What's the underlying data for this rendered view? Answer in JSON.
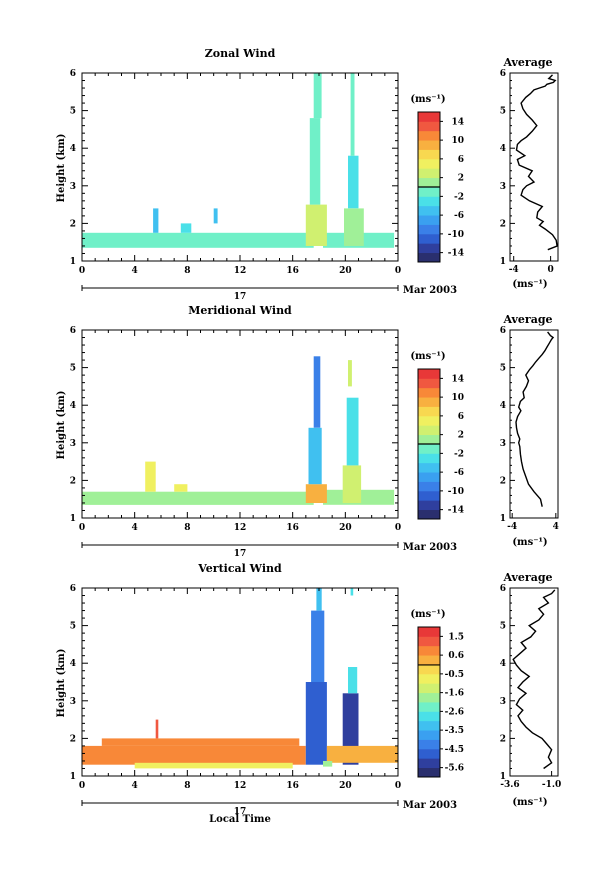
{
  "date_label": "Mar 2003",
  "day_label": "17",
  "xaxis_label": "Local Time",
  "ylabel": "Height (km)",
  "avg_title": "Average",
  "unit_label": "(ms⁻¹)",
  "xticks": [
    "0",
    "4",
    "8",
    "12",
    "16",
    "20",
    "0"
  ],
  "yticks": [
    "1",
    "2",
    "3",
    "4",
    "5",
    "6"
  ],
  "colormap": [
    "#2a2f6e",
    "#2f3f9e",
    "#2f5fd0",
    "#3a80e8",
    "#3aa0f0",
    "#40c0f0",
    "#4ae0e8",
    "#70f0c8",
    "#a0f098",
    "#d0f070",
    "#f0f060",
    "#f8d850",
    "#f8b040",
    "#f88838",
    "#f05840",
    "#e83838"
  ],
  "chart_data": [
    {
      "type": "heatmap",
      "title": "Zonal Wind",
      "ylabel": "Height (km)",
      "xlim": [
        0,
        24
      ],
      "ylim": [
        1,
        6
      ],
      "colorbar": {
        "label": "(ms⁻¹)",
        "ticks": [
          "14",
          "10",
          "6",
          "2",
          "-2",
          "-6",
          "-10",
          "-14"
        ],
        "range": [
          -16,
          16
        ]
      },
      "avg": {
        "xlim": [
          -4.4,
          0.8
        ],
        "xticks": [
          "-4",
          "0"
        ],
        "xlabel": "(ms⁻¹)",
        "x": [
          -0.3,
          0.7,
          0.6,
          0.2,
          -0.6,
          -1.2,
          -0.8,
          -1.5,
          -1.4,
          -0.9,
          -2.3,
          -3.2,
          -3.0,
          -2.6,
          -1.8,
          -2.4,
          -2.0,
          -3.4,
          -3.6,
          -2.8,
          -3.7,
          -3.6,
          -3.2,
          -2.6,
          -2.0,
          -1.5,
          -2.0,
          -2.6,
          -3.0,
          -3.2,
          -2.7,
          -2.2,
          -1.8,
          -1.2,
          -0.6,
          -0.4,
          0.3,
          0.5,
          -0.2,
          0.2
        ],
        "y": [
          1.3,
          1.4,
          1.55,
          1.7,
          1.85,
          1.95,
          2.05,
          2.15,
          2.3,
          2.45,
          2.6,
          2.75,
          2.9,
          3.0,
          3.1,
          3.25,
          3.4,
          3.55,
          3.7,
          3.8,
          3.95,
          4.1,
          4.2,
          4.3,
          4.45,
          4.6,
          4.75,
          4.9,
          5.05,
          5.2,
          5.35,
          5.45,
          5.55,
          5.6,
          5.65,
          5.7,
          5.75,
          5.8,
          5.85,
          5.95
        ]
      },
      "blocks": [
        {
          "x": [
            0,
            17.6
          ],
          "y": [
            1.35,
            1.75
          ],
          "v": -1
        },
        {
          "x": [
            18.3,
            23.7
          ],
          "y": [
            1.35,
            1.75
          ],
          "v": -1
        },
        {
          "x": [
            17.0,
            18.6
          ],
          "y": [
            1.4,
            2.5
          ],
          "v": 3
        },
        {
          "x": [
            17.3,
            18.1
          ],
          "y": [
            2.5,
            4.8
          ],
          "v": -2
        },
        {
          "x": [
            17.6,
            18.2
          ],
          "y": [
            4.8,
            6.4
          ],
          "v": -1
        },
        {
          "x": [
            19.9,
            21.4
          ],
          "y": [
            1.4,
            2.4
          ],
          "v": 1
        },
        {
          "x": [
            20.2,
            21.0
          ],
          "y": [
            2.4,
            3.8
          ],
          "v": -3
        },
        {
          "x": [
            20.4,
            20.7
          ],
          "y": [
            3.8,
            6.4
          ],
          "v": -1
        },
        {
          "x": [
            5.4,
            5.8
          ],
          "y": [
            1.75,
            2.4
          ],
          "v": -5
        },
        {
          "x": [
            7.5,
            8.3
          ],
          "y": [
            1.75,
            2.0
          ],
          "v": -3
        },
        {
          "x": [
            10.0,
            10.3
          ],
          "y": [
            2.0,
            2.4
          ],
          "v": -5
        }
      ]
    },
    {
      "type": "heatmap",
      "title": "Meridional Wind",
      "ylabel": "Height (km)",
      "xlim": [
        0,
        24
      ],
      "ylim": [
        1,
        6
      ],
      "colorbar": {
        "label": "(ms⁻¹)",
        "ticks": [
          "14",
          "10",
          "6",
          "2",
          "-2",
          "-6",
          "-10",
          "-14"
        ],
        "range": [
          -16,
          16
        ]
      },
      "avg": {
        "xlim": [
          -4.4,
          4.4
        ],
        "xticks": [
          "-4",
          "4"
        ],
        "xlabel": "(ms⁻¹)",
        "x": [
          1.5,
          1.2,
          0.0,
          -1.0,
          -1.5,
          -2.0,
          -2.3,
          -2.5,
          -2.6,
          -2.8,
          -2.6,
          -3.0,
          -3.2,
          -3.3,
          -3.0,
          -2.4,
          -2.8,
          -2.5,
          -1.8,
          -2.0,
          -1.4,
          -1.0,
          -1.5,
          -0.8,
          -0.2,
          0.3,
          0.9,
          1.5,
          2.0,
          2.4,
          2.8,
          3.2,
          3.5,
          3.0,
          2.5
        ],
        "y": [
          1.3,
          1.5,
          1.7,
          1.9,
          2.1,
          2.3,
          2.5,
          2.7,
          2.9,
          3.0,
          3.1,
          3.25,
          3.4,
          3.55,
          3.7,
          3.85,
          3.95,
          4.1,
          4.2,
          4.35,
          4.5,
          4.65,
          4.8,
          4.95,
          5.05,
          5.15,
          5.25,
          5.35,
          5.45,
          5.55,
          5.65,
          5.75,
          5.8,
          5.85,
          5.95
        ]
      },
      "blocks": [
        {
          "x": [
            0,
            17.6
          ],
          "y": [
            1.35,
            1.7
          ],
          "v": 1
        },
        {
          "x": [
            18.3,
            23.7
          ],
          "y": [
            1.35,
            1.75
          ],
          "v": 1
        },
        {
          "x": [
            17.0,
            18.6
          ],
          "y": [
            1.4,
            1.9
          ],
          "v": 8
        },
        {
          "x": [
            17.2,
            18.2
          ],
          "y": [
            1.9,
            3.4
          ],
          "v": -6
        },
        {
          "x": [
            17.6,
            18.1
          ],
          "y": [
            3.4,
            5.3
          ],
          "v": -9
        },
        {
          "x": [
            19.8,
            21.2
          ],
          "y": [
            1.4,
            2.4
          ],
          "v": 2
        },
        {
          "x": [
            20.1,
            21.0
          ],
          "y": [
            2.4,
            4.2
          ],
          "v": -4
        },
        {
          "x": [
            20.2,
            20.5
          ],
          "y": [
            4.5,
            5.2
          ],
          "v": 2
        },
        {
          "x": [
            4.8,
            5.6
          ],
          "y": [
            1.7,
            2.5
          ],
          "v": 4
        },
        {
          "x": [
            7.0,
            8.0
          ],
          "y": [
            1.7,
            1.9
          ],
          "v": 5
        }
      ]
    },
    {
      "type": "heatmap",
      "title": "Vertical Wind",
      "ylabel": "Height (km)",
      "xlim": [
        0,
        24
      ],
      "ylim": [
        1,
        6
      ],
      "colorbar": {
        "label": "(ms⁻¹)",
        "ticks": [
          "1.5",
          "0.6",
          "-0.5",
          "-1.6",
          "-2.6",
          "-3.5",
          "-4.5",
          "-5.6"
        ],
        "range": [
          -6.2,
          2.1
        ]
      },
      "avg": {
        "xlim": [
          -3.6,
          -0.6
        ],
        "xticks": [
          "-3.6",
          "-1.0"
        ],
        "xlabel": "(ms⁻¹)",
        "x": [
          -1.5,
          -1.0,
          -1.2,
          -1.0,
          -1.3,
          -1.6,
          -2.2,
          -2.6,
          -2.9,
          -3.1,
          -2.8,
          -3.2,
          -3.0,
          -2.6,
          -3.1,
          -2.8,
          -2.4,
          -2.9,
          -3.2,
          -3.4,
          -3.0,
          -2.6,
          -2.9,
          -2.3,
          -2.0,
          -2.4,
          -1.8,
          -1.5,
          -1.8,
          -1.2,
          -1.5,
          -1.0,
          -0.8
        ],
        "y": [
          1.2,
          1.35,
          1.5,
          1.7,
          1.85,
          2.0,
          2.15,
          2.3,
          2.45,
          2.6,
          2.75,
          2.9,
          3.05,
          3.2,
          3.35,
          3.5,
          3.65,
          3.8,
          3.95,
          4.1,
          4.25,
          4.4,
          4.55,
          4.7,
          4.85,
          5.0,
          5.15,
          5.3,
          5.45,
          5.6,
          5.75,
          5.85,
          5.95
        ]
      },
      "blocks": [
        {
          "x": [
            0,
            17.0
          ],
          "y": [
            1.3,
            1.8
          ],
          "v": 0.6
        },
        {
          "x": [
            1.5,
            16.5
          ],
          "y": [
            1.8,
            2.0
          ],
          "v": 1.0
        },
        {
          "x": [
            17.0,
            18.6
          ],
          "y": [
            1.3,
            3.5
          ],
          "v": -5.0
        },
        {
          "x": [
            17.4,
            18.4
          ],
          "y": [
            3.5,
            5.4
          ],
          "v": -4.5
        },
        {
          "x": [
            17.8,
            18.2
          ],
          "y": [
            5.4,
            6.1
          ],
          "v": -3.5
        },
        {
          "x": [
            19.8,
            21.0
          ],
          "y": [
            1.3,
            3.2
          ],
          "v": -5.2
        },
        {
          "x": [
            20.2,
            20.9
          ],
          "y": [
            3.2,
            3.9
          ],
          "v": -3.0
        },
        {
          "x": [
            20.4,
            20.6
          ],
          "y": [
            5.8,
            6.0
          ],
          "v": -3.0
        },
        {
          "x": [
            18.6,
            24.0
          ],
          "y": [
            1.35,
            1.8
          ],
          "v": 0.5
        },
        {
          "x": [
            18.3,
            19.0
          ],
          "y": [
            1.25,
            1.4
          ],
          "v": -1.6
        },
        {
          "x": [
            4.0,
            16.0
          ],
          "y": [
            1.2,
            1.35
          ],
          "v": -0.5
        },
        {
          "x": [
            5.6,
            5.8
          ],
          "y": [
            2.0,
            2.5
          ],
          "v": 1.4
        }
      ]
    }
  ]
}
